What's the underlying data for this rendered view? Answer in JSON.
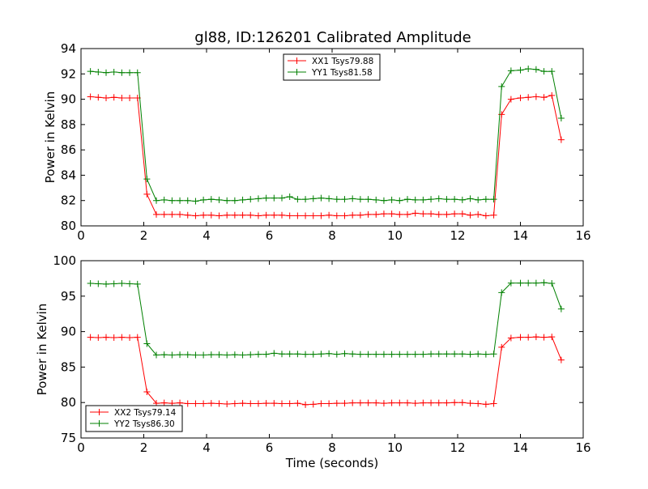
{
  "figure_title": "gl88, ID:126201 Calibrated Amplitude",
  "chart_data": [
    {
      "type": "line",
      "title": "gl88, ID:126201 Calibrated Amplitude",
      "xlabel": "",
      "ylabel": "Power in Kelvin",
      "xlim": [
        0,
        16
      ],
      "ylim": [
        80,
        94
      ],
      "xticks": [
        0,
        2,
        4,
        6,
        8,
        10,
        12,
        14,
        16
      ],
      "yticks": [
        80,
        82,
        84,
        86,
        88,
        90,
        92,
        94
      ],
      "grid": false,
      "legend_position": "top-center",
      "x": [
        0.3,
        0.55,
        0.8,
        1.05,
        1.3,
        1.55,
        1.8,
        2.1,
        2.4,
        2.65,
        2.9,
        3.15,
        3.4,
        3.65,
        3.9,
        4.15,
        4.4,
        4.65,
        4.9,
        5.15,
        5.4,
        5.65,
        5.9,
        6.15,
        6.4,
        6.65,
        6.9,
        7.15,
        7.4,
        7.65,
        7.9,
        8.15,
        8.4,
        8.65,
        8.9,
        9.15,
        9.4,
        9.65,
        9.9,
        10.15,
        10.4,
        10.65,
        10.9,
        11.15,
        11.4,
        11.65,
        11.9,
        12.15,
        12.4,
        12.65,
        12.9,
        13.15,
        13.4,
        13.7,
        14.0,
        14.25,
        14.5,
        14.75,
        15.0,
        15.3
      ],
      "series": [
        {
          "name": "XX1 Tsys79.88",
          "color": "#ff0000",
          "values": [
            90.2,
            90.15,
            90.1,
            90.15,
            90.1,
            90.1,
            90.1,
            82.5,
            80.9,
            80.9,
            80.9,
            80.9,
            80.85,
            80.8,
            80.85,
            80.85,
            80.8,
            80.85,
            80.85,
            80.85,
            80.85,
            80.8,
            80.85,
            80.85,
            80.85,
            80.8,
            80.8,
            80.8,
            80.8,
            80.8,
            80.85,
            80.8,
            80.8,
            80.85,
            80.85,
            80.9,
            80.9,
            80.95,
            80.95,
            80.9,
            80.9,
            81.0,
            80.95,
            80.95,
            80.9,
            80.9,
            80.95,
            80.95,
            80.85,
            80.9,
            80.8,
            80.85,
            88.8,
            90.0,
            90.1,
            90.15,
            90.2,
            90.15,
            90.3,
            86.8
          ]
        },
        {
          "name": "YY1 Tsys81.58",
          "color": "#008000",
          "values": [
            92.2,
            92.15,
            92.1,
            92.15,
            92.1,
            92.1,
            92.1,
            83.7,
            82.0,
            82.05,
            82.0,
            82.0,
            82.0,
            81.95,
            82.05,
            82.1,
            82.05,
            82.0,
            82.0,
            82.05,
            82.1,
            82.15,
            82.2,
            82.2,
            82.2,
            82.3,
            82.1,
            82.1,
            82.15,
            82.2,
            82.15,
            82.1,
            82.1,
            82.15,
            82.1,
            82.1,
            82.05,
            82.0,
            82.05,
            82.0,
            82.1,
            82.05,
            82.05,
            82.1,
            82.15,
            82.1,
            82.1,
            82.05,
            82.15,
            82.05,
            82.1,
            82.1,
            91.0,
            92.25,
            92.3,
            92.4,
            92.35,
            92.2,
            92.2,
            88.5
          ]
        }
      ]
    },
    {
      "type": "line",
      "title": "",
      "xlabel": "Time (seconds)",
      "ylabel": "Power in Kelvin",
      "xlim": [
        0,
        16
      ],
      "ylim": [
        75,
        100
      ],
      "xticks": [
        0,
        2,
        4,
        6,
        8,
        10,
        12,
        14,
        16
      ],
      "yticks": [
        75,
        80,
        85,
        90,
        95,
        100
      ],
      "grid": false,
      "legend_position": "bottom-left",
      "x": [
        0.3,
        0.55,
        0.8,
        1.05,
        1.3,
        1.55,
        1.8,
        2.1,
        2.4,
        2.65,
        2.9,
        3.15,
        3.4,
        3.65,
        3.9,
        4.15,
        4.4,
        4.65,
        4.9,
        5.15,
        5.4,
        5.65,
        5.9,
        6.15,
        6.4,
        6.65,
        6.9,
        7.15,
        7.4,
        7.65,
        7.9,
        8.15,
        8.4,
        8.65,
        8.9,
        9.15,
        9.4,
        9.65,
        9.9,
        10.15,
        10.4,
        10.65,
        10.9,
        11.15,
        11.4,
        11.65,
        11.9,
        12.15,
        12.4,
        12.65,
        12.9,
        13.15,
        13.4,
        13.7,
        14.0,
        14.25,
        14.5,
        14.75,
        15.0,
        15.3
      ],
      "series": [
        {
          "name": "XX2 Tsys79.14",
          "color": "#ff0000",
          "values": [
            89.2,
            89.15,
            89.2,
            89.15,
            89.2,
            89.15,
            89.2,
            81.5,
            79.9,
            79.95,
            79.9,
            79.95,
            79.85,
            79.85,
            79.85,
            79.9,
            79.85,
            79.8,
            79.85,
            79.9,
            79.85,
            79.85,
            79.9,
            79.9,
            79.85,
            79.85,
            79.9,
            79.7,
            79.75,
            79.85,
            79.85,
            79.9,
            79.9,
            79.95,
            79.95,
            79.95,
            79.95,
            79.9,
            79.95,
            79.95,
            79.95,
            79.9,
            79.95,
            79.95,
            79.95,
            79.95,
            80.0,
            80.0,
            79.9,
            79.85,
            79.75,
            79.85,
            87.8,
            89.1,
            89.2,
            89.2,
            89.25,
            89.2,
            89.25,
            86.0
          ]
        },
        {
          "name": "YY2 Tsys86.30",
          "color": "#008000",
          "values": [
            96.8,
            96.75,
            96.7,
            96.75,
            96.8,
            96.75,
            96.7,
            88.3,
            86.7,
            86.75,
            86.7,
            86.75,
            86.75,
            86.7,
            86.7,
            86.75,
            86.75,
            86.7,
            86.75,
            86.7,
            86.75,
            86.8,
            86.8,
            86.95,
            86.85,
            86.85,
            86.85,
            86.8,
            86.8,
            86.85,
            86.9,
            86.8,
            86.9,
            86.85,
            86.8,
            86.8,
            86.8,
            86.8,
            86.8,
            86.8,
            86.8,
            86.8,
            86.8,
            86.85,
            86.85,
            86.85,
            86.85,
            86.85,
            86.8,
            86.85,
            86.8,
            86.85,
            95.5,
            96.85,
            96.85,
            96.85,
            96.85,
            96.9,
            96.8,
            93.2
          ]
        }
      ]
    }
  ]
}
